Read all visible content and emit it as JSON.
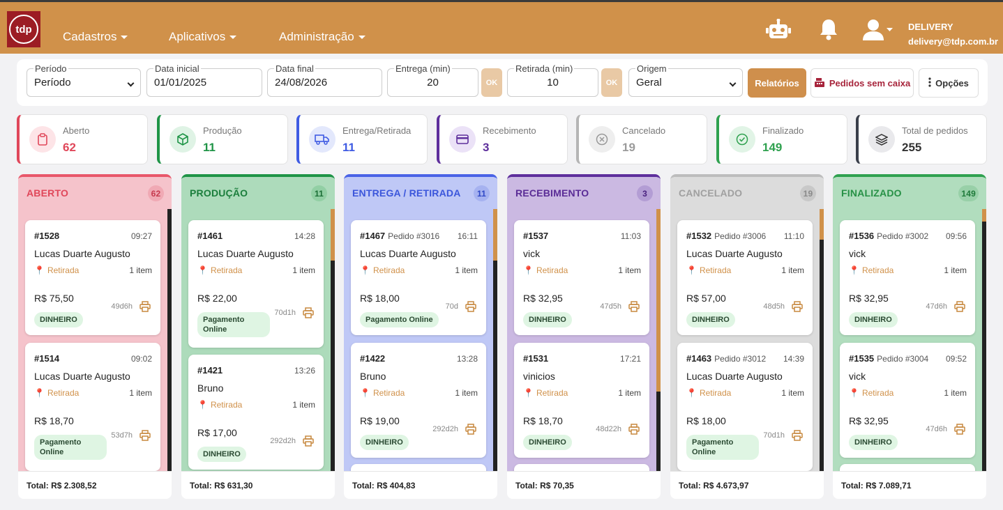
{
  "brand": {
    "logo_text": "tdp"
  },
  "nav": {
    "menus": [
      {
        "label": "Cadastros"
      },
      {
        "label": "Aplicativos"
      },
      {
        "label": "Administração"
      }
    ],
    "user": {
      "name": "DELIVERY",
      "email": "delivery@tdp.com.br"
    }
  },
  "filters": {
    "periodo_label": "Período",
    "periodo_value": "Período",
    "data_inicial_label": "Data inicial",
    "data_inicial_value": "01/01/2025",
    "data_final_label": "Data final",
    "data_final_value": "24/08/2026",
    "entrega_label": "Entrega (min)",
    "entrega_value": "20",
    "retirada_label": "Retirada (min)",
    "retirada_value": "10",
    "ok_label": "OK",
    "origem_label": "Origem",
    "origem_value": "Geral",
    "relatorios_label": "Relatórios",
    "pedidos_sem_caixa_label": "Pedidos sem caixa",
    "opcoes_label": "Opções"
  },
  "stats": [
    {
      "label": "Aberto",
      "value": "62",
      "color": "#e0475a"
    },
    {
      "label": "Produção",
      "value": "11",
      "color": "#1f9447"
    },
    {
      "label": "Entrega/Retirada",
      "value": "11",
      "color": "#3f5be3"
    },
    {
      "label": "Recebimento",
      "value": "3",
      "color": "#5e2f9c"
    },
    {
      "label": "Cancelado",
      "value": "19",
      "color": "#9b9b9b"
    },
    {
      "label": "Finalizado",
      "value": "149",
      "color": "#2fa14f"
    },
    {
      "label": "Total de pedidos",
      "value": "255",
      "color": "#333"
    }
  ],
  "columns": [
    {
      "title": "ABERTO",
      "count": "62",
      "total": "Total: R$ 2.308,52",
      "cards": [
        {
          "id": "#1528",
          "pedido": "",
          "time": "09:27",
          "name": "Lucas Duarte Augusto",
          "type": "Retirada",
          "items": "1 item",
          "price": "R$ 75,50",
          "age": "49d6h",
          "payment": "DINHEIRO"
        },
        {
          "id": "#1514",
          "pedido": "",
          "time": "09:02",
          "name": "Lucas Duarte Augusto",
          "type": "Retirada",
          "items": "1 item",
          "price": "R$ 18,70",
          "age": "53d7h",
          "payment": "Pagamento Online"
        }
      ]
    },
    {
      "title": "PRODUÇÃO",
      "count": "11",
      "total": "Total: R$ 631,30",
      "cards": [
        {
          "id": "#1461",
          "pedido": "",
          "time": "14:28",
          "name": "Lucas Duarte Augusto",
          "type": "Retirada",
          "items": "1 item",
          "price": "R$ 22,00",
          "age": "70d1h",
          "payment": "Pagamento Online"
        },
        {
          "id": "#1421",
          "pedido": "",
          "time": "13:26",
          "name": "Bruno",
          "type": "Retirada",
          "items": "1 item",
          "price": "R$ 17,00",
          "age": "292d2h",
          "payment": "DINHEIRO"
        }
      ]
    },
    {
      "title": "ENTREGA / RETIRADA",
      "count": "11",
      "total": "Total: R$ 404,83",
      "cards": [
        {
          "id": "#1467",
          "pedido": "Pedido #3016",
          "time": "16:11",
          "name": "Lucas Duarte Augusto",
          "type": "Retirada",
          "items": "1 item",
          "price": "R$ 18,00",
          "age": "70d",
          "payment": "Pagamento Online"
        },
        {
          "id": "#1422",
          "pedido": "",
          "time": "13:28",
          "name": "Bruno",
          "type": "Retirada",
          "items": "1 item",
          "price": "R$ 19,00",
          "age": "292d2h",
          "payment": "DINHEIRO"
        }
      ]
    },
    {
      "title": "RECEBIMENTO",
      "count": "3",
      "total": "Total: R$ 70,35",
      "cards": [
        {
          "id": "#1537",
          "pedido": "",
          "time": "11:03",
          "name": "vick",
          "type": "Retirada",
          "items": "1 item",
          "price": "R$ 32,95",
          "age": "47d5h",
          "payment": "DINHEIRO"
        },
        {
          "id": "#1531",
          "pedido": "",
          "time": "17:21",
          "name": "vinicios",
          "type": "Retirada",
          "items": "1 item",
          "price": "R$ 18,70",
          "age": "48d22h",
          "payment": "DINHEIRO"
        }
      ]
    },
    {
      "title": "CANCELADO",
      "count": "19",
      "total": "Total: R$ 4.673,97",
      "cards": [
        {
          "id": "#1532",
          "pedido": "Pedido #3006",
          "time": "11:10",
          "name": "Lucas Duarte Augusto",
          "type": "Retirada",
          "items": "1 item",
          "price": "R$ 57,00",
          "age": "48d5h",
          "payment": "DINHEIRO"
        },
        {
          "id": "#1463",
          "pedido": "Pedido #3012",
          "time": "14:39",
          "name": "Lucas Duarte Augusto",
          "type": "Retirada",
          "items": "1 item",
          "price": "R$ 18,00",
          "age": "70d1h",
          "payment": "Pagamento Online"
        }
      ]
    },
    {
      "title": "FINALIZADO",
      "count": "149",
      "total": "Total: R$ 7.089,71",
      "cards": [
        {
          "id": "#1536",
          "pedido": "Pedido #3002",
          "time": "09:56",
          "name": "vick",
          "type": "Retirada",
          "items": "1 item",
          "price": "R$ 32,95",
          "age": "47d6h",
          "payment": "DINHEIRO"
        },
        {
          "id": "#1535",
          "pedido": "Pedido #3004",
          "time": "09:52",
          "name": "vick",
          "type": "Retirada",
          "items": "1 item",
          "price": "R$ 32,95",
          "age": "47d6h",
          "payment": "DINHEIRO"
        }
      ]
    }
  ]
}
